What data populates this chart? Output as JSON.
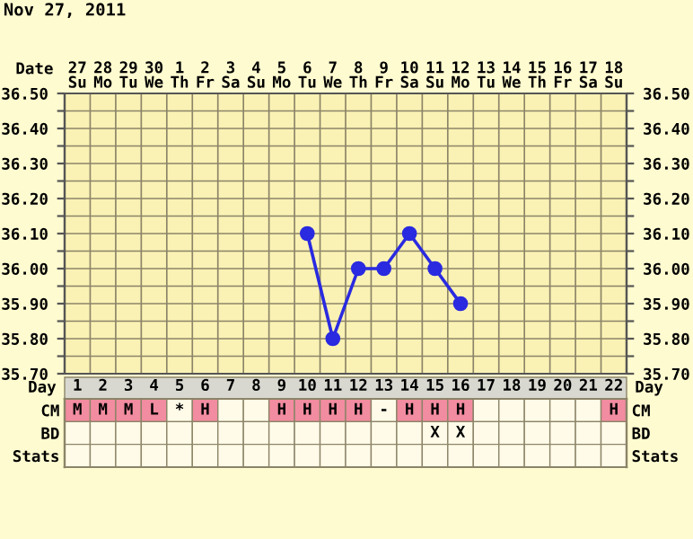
{
  "chart_data": [
    {
      "type": "line",
      "title": "Nov 27, 2011",
      "xlabel": "Date",
      "categories": [
        "27\nSu",
        "28\nMo",
        "29\nTu",
        "30\nWe",
        "1\nTh",
        "2\nFr",
        "3\nSa",
        "4\nSu",
        "5\nMo",
        "6\nTu",
        "7\nWe",
        "8\nTh",
        "9\nFr",
        "10\nSa",
        "11\nSu",
        "12\nMo",
        "13\nTu",
        "14\nWe",
        "15\nTh",
        "16\nFr",
        "17\nSa",
        "18\nSu"
      ],
      "series": [
        {
          "color": "#2a2ae0",
          "values": [
            null,
            null,
            null,
            null,
            null,
            null,
            null,
            null,
            null,
            36.1,
            35.8,
            36.0,
            36.0,
            36.1,
            36.0,
            35.9,
            null,
            null,
            null,
            null,
            null,
            null
          ]
        }
      ],
      "marker": "circle",
      "line_style": "solid",
      "grid": true,
      "ylim": [
        35.7,
        36.5
      ],
      "yticks": [
        {
          "value": 35.7,
          "label": "35.70"
        },
        {
          "value": 35.75,
          "label": null
        },
        {
          "value": 35.8,
          "label": "35.80"
        },
        {
          "value": 35.85,
          "label": null
        },
        {
          "value": 35.9,
          "label": "35.90"
        },
        {
          "value": 35.95,
          "label": null
        },
        {
          "value": 36.0,
          "label": "36.00"
        },
        {
          "value": 36.05,
          "label": null
        },
        {
          "value": 36.1,
          "label": "36.10"
        },
        {
          "value": 36.15,
          "label": null
        },
        {
          "value": 36.2,
          "label": "36.20"
        },
        {
          "value": 36.25,
          "label": null
        },
        {
          "value": 36.3,
          "label": "36.30"
        },
        {
          "value": 36.35,
          "label": null
        },
        {
          "value": 36.4,
          "label": "36.40"
        },
        {
          "value": 36.45,
          "label": null
        },
        {
          "value": 36.5,
          "label": "36.50"
        }
      ],
      "y2lim": [
        35.7,
        36.5
      ],
      "y2ticks": [
        {
          "value": 35.7,
          "label": "35.70"
        },
        {
          "value": 35.75,
          "label": null
        },
        {
          "value": 35.8,
          "label": "35.80"
        },
        {
          "value": 35.85,
          "label": null
        },
        {
          "value": 35.9,
          "label": "35.90"
        },
        {
          "value": 35.95,
          "label": null
        },
        {
          "value": 36.0,
          "label": "36.00"
        },
        {
          "value": 36.05,
          "label": null
        },
        {
          "value": 36.1,
          "label": "36.10"
        },
        {
          "value": 36.15,
          "label": null
        },
        {
          "value": 36.2,
          "label": "36.20"
        },
        {
          "value": 36.25,
          "label": null
        },
        {
          "value": 36.3,
          "label": "36.30"
        },
        {
          "value": 36.35,
          "label": null
        },
        {
          "value": 36.4,
          "label": "36.40"
        },
        {
          "value": 36.45,
          "label": null
        },
        {
          "value": 36.5,
          "label": "36.50"
        }
      ]
    },
    {
      "type": "heatmap",
      "xlabel": "Day",
      "categories": [
        "1",
        "2",
        "3",
        "4",
        "5",
        "6",
        "7",
        "8",
        "9",
        "10",
        "11",
        "12",
        "13",
        "14",
        "15",
        "16",
        "17",
        "18",
        "19",
        "20",
        "21",
        "22"
      ],
      "y_categories": [
        "CM",
        "BD",
        "Stats"
      ],
      "y2_categories": [
        "CM",
        "BD",
        "Stats"
      ],
      "cells": [
        [
          null,
          null,
          null,
          null,
          null,
          null,
          null,
          null,
          null,
          null,
          null,
          null,
          null,
          null,
          null,
          null,
          null,
          null,
          null,
          null,
          null,
          null
        ],
        [
          null,
          null,
          null,
          null,
          null,
          null,
          null,
          null,
          null,
          null,
          null,
          null,
          null,
          null,
          null,
          null,
          null,
          null,
          null,
          null,
          null,
          null
        ],
        [
          null,
          null,
          null,
          null,
          null,
          null,
          null,
          null,
          null,
          null,
          null,
          null,
          null,
          null,
          null,
          null,
          null,
          null,
          null,
          null,
          null,
          null
        ]
      ],
      "cell_labels": [
        [
          "M",
          "M",
          "M",
          "L",
          "*",
          "H",
          null,
          null,
          "H",
          "H",
          "H",
          "H",
          "-",
          "H",
          "H",
          "H",
          null,
          null,
          null,
          null,
          null,
          "H"
        ],
        [
          null,
          null,
          null,
          null,
          null,
          null,
          null,
          null,
          null,
          null,
          null,
          null,
          null,
          null,
          "X",
          "X",
          null,
          null,
          null,
          null,
          null,
          null
        ],
        [
          null,
          null,
          null,
          null,
          null,
          null,
          null,
          null,
          null,
          null,
          null,
          null,
          null,
          null,
          null,
          null,
          null,
          null,
          null,
          null,
          null,
          null
        ]
      ],
      "colors": [
        [
          "#f28ca0",
          "#f28ca0",
          "#f28ca0",
          "#f28ca0",
          "#fffbe8",
          "#f28ca0",
          "#fffbe8",
          "#fffbe8",
          "#f28ca0",
          "#f28ca0",
          "#f28ca0",
          "#f28ca0",
          "#fffbe8",
          "#f28ca0",
          "#f28ca0",
          "#f28ca0",
          "#fffbe8",
          "#fffbe8",
          "#fffbe8",
          "#fffbe8",
          "#fffbe8",
          "#f28ca0"
        ],
        [
          "#fffbe8",
          "#fffbe8",
          "#fffbe8",
          "#fffbe8",
          "#fffbe8",
          "#fffbe8",
          "#fffbe8",
          "#fffbe8",
          "#fffbe8",
          "#fffbe8",
          "#fffbe8",
          "#fffbe8",
          "#fffbe8",
          "#fffbe8",
          "#fffbe8",
          "#fffbe8",
          "#fffbe8",
          "#fffbe8",
          "#fffbe8",
          "#fffbe8",
          "#fffbe8",
          "#fffbe8"
        ],
        [
          "#fffbe8",
          "#fffbe8",
          "#fffbe8",
          "#fffbe8",
          "#fffbe8",
          "#fffbe8",
          "#fffbe8",
          "#fffbe8",
          "#fffbe8",
          "#fffbe8",
          "#fffbe8",
          "#fffbe8",
          "#fffbe8",
          "#fffbe8",
          "#fffbe8",
          "#fffbe8",
          "#fffbe8",
          "#fffbe8",
          "#fffbe8",
          "#fffbe8",
          "#fffbe8",
          "#fffbe8"
        ]
      ]
    }
  ]
}
